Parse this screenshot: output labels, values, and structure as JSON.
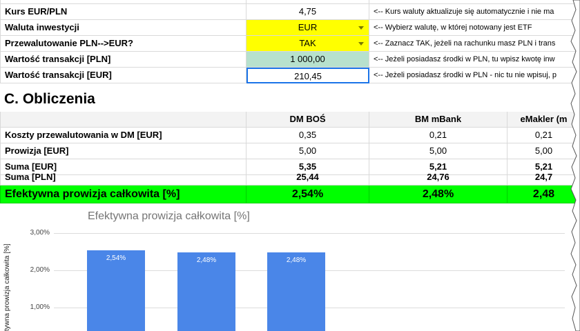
{
  "inputs": [
    {
      "label": "Kurs EUR/PLN",
      "value": "4,75",
      "note": "<-- Kurs waluty aktualizuje się automatycznie i nie ma"
    },
    {
      "label": "Waluta inwestycji",
      "value": "EUR",
      "note": "<-- Wybierz walutę, w której notowany jest ETF"
    },
    {
      "label": "Przewalutowanie PLN-->EUR?",
      "value": "TAK",
      "note": "<-- Zaznacz TAK, jeżeli na rachunku masz PLN i trans"
    },
    {
      "label": "Wartość transakcji [PLN]",
      "value": "1 000,00",
      "note": "<-- Jeżeli posiadasz środki w PLN, tu wpisz kwotę inw"
    },
    {
      "label": "Wartość transakcji [EUR]",
      "value": "210,45",
      "note": "<-- Jeżeli posiadasz środki w PLN - nic tu nie wpisuj, p"
    }
  ],
  "section": {
    "title": "C. Obliczenia"
  },
  "calc": {
    "headers": [
      "DM BOŚ",
      "BM mBank",
      "eMakler (m"
    ],
    "rows": [
      {
        "label": "Koszty przewalutowania w DM [EUR]",
        "values": [
          "0,35",
          "0,21",
          "0,21"
        ]
      },
      {
        "label": "Prowizja [EUR]",
        "values": [
          "5,00",
          "5,00",
          "5,00"
        ]
      },
      {
        "label": "Suma [EUR]",
        "values": [
          "5,35",
          "5,21",
          "5,21"
        ]
      },
      {
        "label": "Suma [PLN]",
        "values": [
          "25,44",
          "24,76",
          "24,7"
        ]
      }
    ],
    "effective": {
      "label": "Efektywna prowizja całkowita [%]",
      "values": [
        "2,54%",
        "2,48%",
        "2,48"
      ]
    }
  },
  "chart_data": {
    "type": "bar",
    "title": "Efektywna prowizja całkowita [%]",
    "ylabel": "tywna prowizja całkowita [%]",
    "yticks": [
      "3,00%",
      "2,00%",
      "1,00%"
    ],
    "ylim": [
      0,
      3
    ],
    "values": [
      2.54,
      2.48,
      2.48
    ],
    "data_labels": [
      "2,54%",
      "2,48%",
      "2,48%"
    ],
    "bar_color": "#4a86e8"
  },
  "colors": {
    "input_yellow": "#ffff00",
    "input_green": "#b7e1cd",
    "result_green": "#00ff00",
    "selection_blue": "#1a73e8"
  }
}
